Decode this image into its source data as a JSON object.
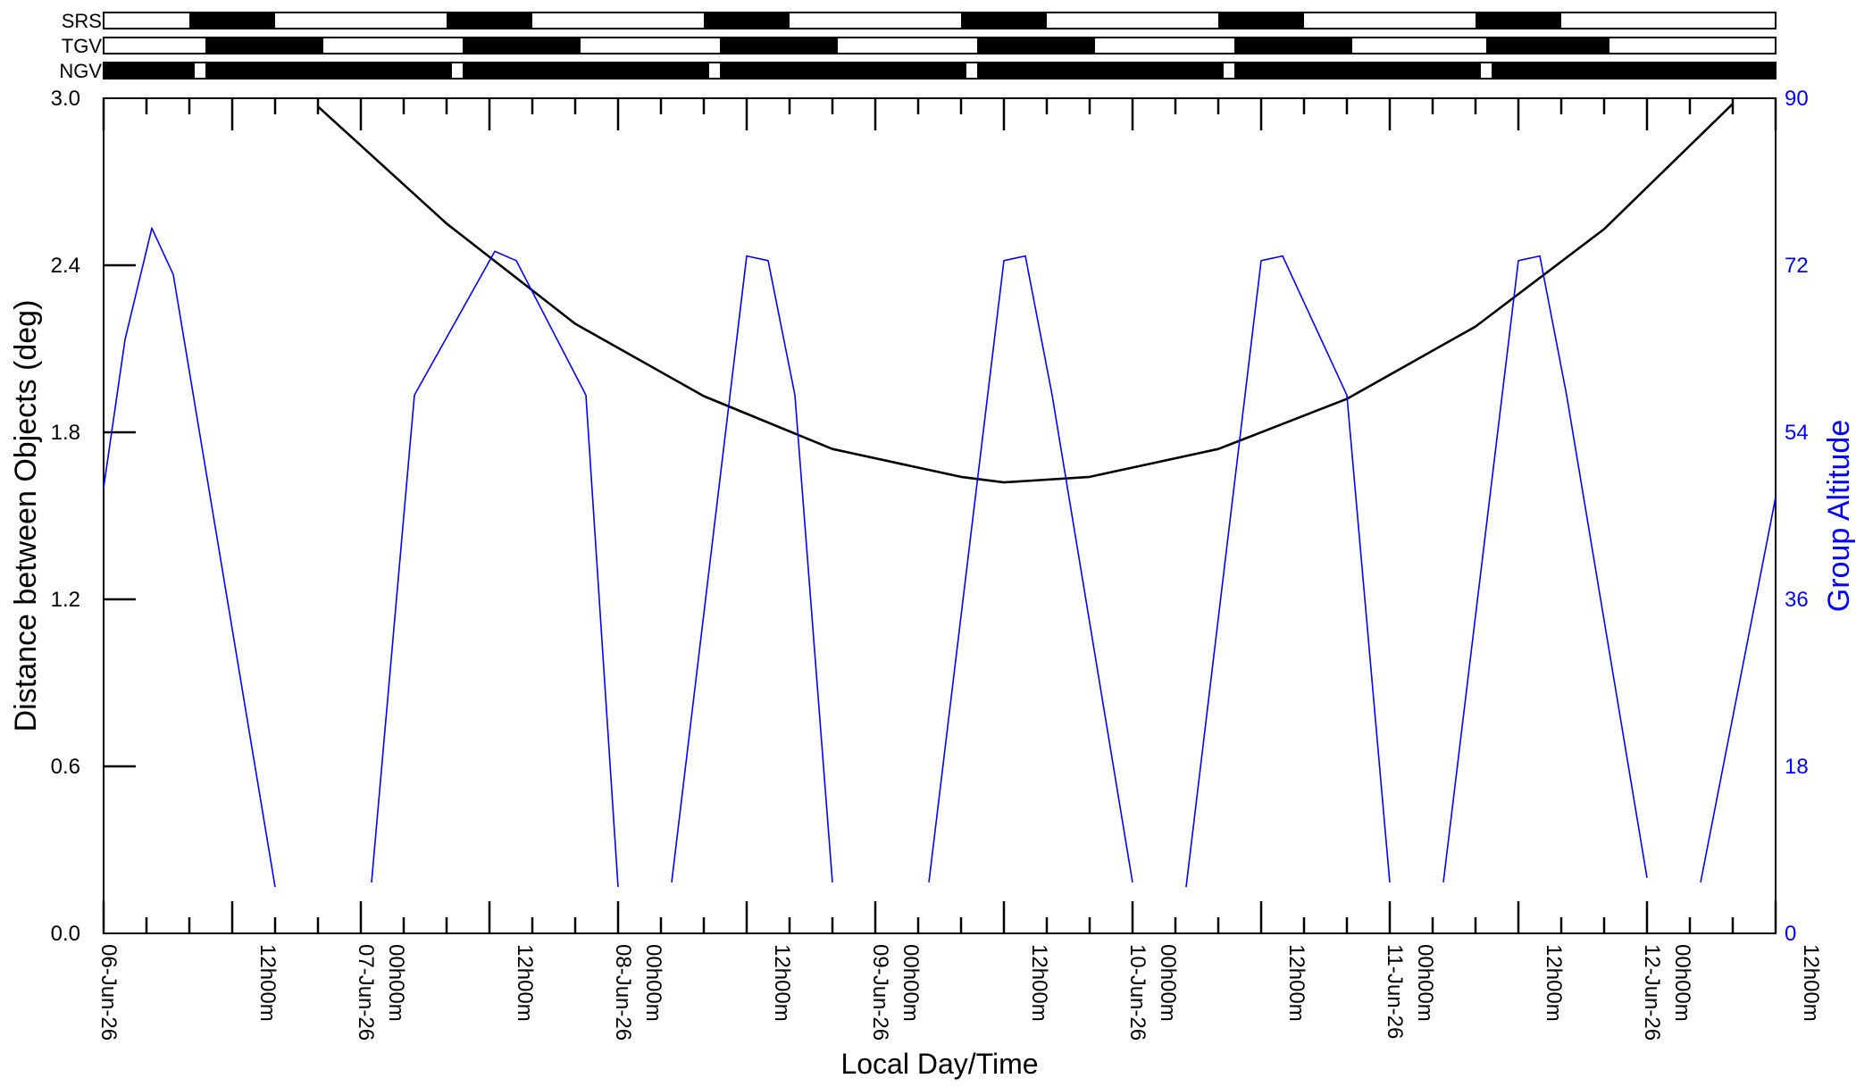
{
  "chart_data": {
    "type": "line",
    "xlabel": "Local Day/Time",
    "ylabel": "Distance between Objects (deg)",
    "y2label": "Group Altitude",
    "x_range": [
      "2026-06-06 00:00",
      "2026-06-12 12:00"
    ],
    "ylim": [
      0.0,
      3.0
    ],
    "y2lim": [
      0,
      90
    ],
    "yticks": [
      "0.0",
      "0.6",
      "1.2",
      "1.8",
      "2.4",
      "3.0"
    ],
    "y2ticks": [
      "0",
      "18",
      "36",
      "54",
      "72",
      "90"
    ],
    "xticks": [
      {
        "t": "2026-06-06 00:00",
        "label": "06-Jun-26",
        "kind": "date"
      },
      {
        "t": "2026-06-06 12:00",
        "label": "12h00m",
        "kind": "time"
      },
      {
        "t": "2026-06-07 00:00",
        "label": "07-Jun-26",
        "kind": "date"
      },
      {
        "t": "2026-06-07 00:00",
        "label": "00h00m",
        "kind": "time"
      },
      {
        "t": "2026-06-07 12:00",
        "label": "12h00m",
        "kind": "time"
      },
      {
        "t": "2026-06-08 00:00",
        "label": "08-Jun-26",
        "kind": "date"
      },
      {
        "t": "2026-06-08 00:00",
        "label": "00h00m",
        "kind": "time"
      },
      {
        "t": "2026-06-08 12:00",
        "label": "12h00m",
        "kind": "time"
      },
      {
        "t": "2026-06-09 00:00",
        "label": "09-Jun-26",
        "kind": "date"
      },
      {
        "t": "2026-06-09 00:00",
        "label": "00h00m",
        "kind": "time"
      },
      {
        "t": "2026-06-09 12:00",
        "label": "12h00m",
        "kind": "time"
      },
      {
        "t": "2026-06-10 00:00",
        "label": "10-Jun-26",
        "kind": "date"
      },
      {
        "t": "2026-06-10 00:00",
        "label": "00h00m",
        "kind": "time"
      },
      {
        "t": "2026-06-10 12:00",
        "label": "12h00m",
        "kind": "time"
      },
      {
        "t": "2026-06-11 00:00",
        "label": "11-Jun-26",
        "kind": "date"
      },
      {
        "t": "2026-06-11 00:00",
        "label": "00h00m",
        "kind": "time"
      },
      {
        "t": "2026-06-11 12:00",
        "label": "12h00m",
        "kind": "time"
      },
      {
        "t": "2026-06-12 00:00",
        "label": "12-Jun-26",
        "kind": "date"
      },
      {
        "t": "2026-06-12 00:00",
        "label": "00h00m",
        "kind": "time"
      },
      {
        "t": "2026-06-12 12:00",
        "label": "12h00m",
        "kind": "time"
      }
    ],
    "grid": false,
    "colors": {
      "distance": "#000000",
      "altitude": "#0000ff",
      "axis": "#000000",
      "right_axis": "#0000ff"
    },
    "series": [
      {
        "axis": "left",
        "color": "#000000",
        "points": [
          [
            "2026-06-06 20:00",
            2.97
          ],
          [
            "2026-06-07 08:00",
            2.55
          ],
          [
            "2026-06-07 20:00",
            2.19
          ],
          [
            "2026-06-08 08:00",
            1.93
          ],
          [
            "2026-06-08 20:00",
            1.74
          ],
          [
            "2026-06-09 08:00",
            1.64
          ],
          [
            "2026-06-09 12:00",
            1.62
          ],
          [
            "2026-06-09 20:00",
            1.64
          ],
          [
            "2026-06-10 08:00",
            1.74
          ],
          [
            "2026-06-10 20:00",
            1.92
          ],
          [
            "2026-06-11 08:00",
            2.18
          ],
          [
            "2026-06-11 20:00",
            2.53
          ],
          [
            "2026-06-12 08:00",
            2.98
          ]
        ]
      },
      {
        "axis": "right",
        "color": "#0000ff",
        "points": [
          [
            "2026-06-06 00:00",
            48.0
          ],
          [
            "2026-06-06 02:00",
            64.0
          ],
          [
            "2026-06-06 04:30",
            76.0
          ],
          [
            "2026-06-06 06:30",
            71.0
          ],
          [
            "2026-06-06 16:00",
            5.0
          ],
          null,
          [
            "2026-06-07 01:00",
            5.5
          ],
          [
            "2026-06-07 05:00",
            58.0
          ],
          [
            "2026-06-07 12:30",
            73.5
          ],
          [
            "2026-06-07 14:30",
            72.5
          ],
          [
            "2026-06-07 21:00",
            58.0
          ],
          [
            "2026-06-08 00:00",
            5.0
          ],
          null,
          [
            "2026-06-08 05:00",
            5.5
          ],
          [
            "2026-06-08 12:00",
            73.0
          ],
          [
            "2026-06-08 14:00",
            72.5
          ],
          [
            "2026-06-08 16:30",
            58.0
          ],
          [
            "2026-06-08 20:00",
            5.5
          ],
          null,
          [
            "2026-06-09 05:00",
            5.5
          ],
          [
            "2026-06-09 12:00",
            72.5
          ],
          [
            "2026-06-09 14:00",
            73.0
          ],
          [
            "2026-06-09 16:30",
            58.0
          ],
          [
            "2026-06-10 00:00",
            5.5
          ],
          null,
          [
            "2026-06-10 05:00",
            5.0
          ],
          [
            "2026-06-10 12:00",
            72.5
          ],
          [
            "2026-06-10 14:00",
            73.0
          ],
          [
            "2026-06-10 20:00",
            58.0
          ],
          [
            "2026-06-11 00:00",
            5.5
          ],
          null,
          [
            "2026-06-11 05:00",
            5.5
          ],
          [
            "2026-06-11 12:00",
            72.5
          ],
          [
            "2026-06-11 14:00",
            73.0
          ],
          [
            "2026-06-11 16:30",
            58.0
          ],
          [
            "2026-06-12 00:00",
            6.0
          ],
          null,
          [
            "2026-06-12 05:00",
            5.5
          ],
          [
            "2026-06-12 12:00",
            47.0
          ]
        ]
      }
    ],
    "bands": [
      {
        "label": "SRS",
        "segments": [
          [
            "2026-06-06 00:00",
            "2026-06-06 08:00",
            "white"
          ],
          [
            "2026-06-06 08:00",
            "2026-06-06 16:00",
            "black"
          ],
          [
            "2026-06-06 16:00",
            "2026-06-07 08:00",
            "white"
          ],
          [
            "2026-06-07 08:00",
            "2026-06-07 16:00",
            "black"
          ],
          [
            "2026-06-07 16:00",
            "2026-06-08 08:00",
            "white"
          ],
          [
            "2026-06-08 08:00",
            "2026-06-08 16:00",
            "black"
          ],
          [
            "2026-06-08 16:00",
            "2026-06-09 08:00",
            "white"
          ],
          [
            "2026-06-09 08:00",
            "2026-06-09 16:00",
            "black"
          ],
          [
            "2026-06-09 16:00",
            "2026-06-10 08:00",
            "white"
          ],
          [
            "2026-06-10 08:00",
            "2026-06-10 16:00",
            "black"
          ],
          [
            "2026-06-10 16:00",
            "2026-06-11 08:00",
            "white"
          ],
          [
            "2026-06-11 08:00",
            "2026-06-11 16:00",
            "black"
          ],
          [
            "2026-06-11 16:00",
            "2026-06-12 08:00",
            "white"
          ],
          [
            "2026-06-12 08:00",
            "2026-06-12 12:00",
            "white"
          ]
        ]
      },
      {
        "label": "TGV",
        "segments": [
          [
            "2026-06-06 00:00",
            "2026-06-06 09:30",
            "white"
          ],
          [
            "2026-06-06 09:30",
            "2026-06-06 20:30",
            "black"
          ],
          [
            "2026-06-06 20:30",
            "2026-06-07 09:30",
            "white"
          ],
          [
            "2026-06-07 09:30",
            "2026-06-07 20:30",
            "black"
          ],
          [
            "2026-06-07 20:30",
            "2026-06-08 09:30",
            "white"
          ],
          [
            "2026-06-08 09:30",
            "2026-06-08 20:30",
            "black"
          ],
          [
            "2026-06-08 20:30",
            "2026-06-09 09:30",
            "white"
          ],
          [
            "2026-06-09 09:30",
            "2026-06-09 20:30",
            "black"
          ],
          [
            "2026-06-09 20:30",
            "2026-06-10 09:30",
            "white"
          ],
          [
            "2026-06-10 09:30",
            "2026-06-10 20:30",
            "black"
          ],
          [
            "2026-06-10 20:30",
            "2026-06-11 09:00",
            "white"
          ],
          [
            "2026-06-11 09:00",
            "2026-06-11 20:30",
            "black"
          ],
          [
            "2026-06-11 20:30",
            "2026-06-12 12:00",
            "white"
          ]
        ]
      },
      {
        "label": "NGV",
        "segments": [
          [
            "2026-06-06 00:00",
            "2026-06-06 08:30",
            "black"
          ],
          [
            "2026-06-06 08:30",
            "2026-06-06 09:30",
            "white"
          ],
          [
            "2026-06-06 09:30",
            "2026-06-07 08:30",
            "black"
          ],
          [
            "2026-06-07 08:30",
            "2026-06-07 09:30",
            "white"
          ],
          [
            "2026-06-07 09:30",
            "2026-06-08 08:30",
            "black"
          ],
          [
            "2026-06-08 08:30",
            "2026-06-08 09:30",
            "white"
          ],
          [
            "2026-06-08 09:30",
            "2026-06-09 08:30",
            "black"
          ],
          [
            "2026-06-09 08:30",
            "2026-06-09 09:30",
            "white"
          ],
          [
            "2026-06-09 09:30",
            "2026-06-10 08:30",
            "black"
          ],
          [
            "2026-06-10 08:30",
            "2026-06-10 09:30",
            "white"
          ],
          [
            "2026-06-10 09:30",
            "2026-06-11 08:30",
            "black"
          ],
          [
            "2026-06-11 08:30",
            "2026-06-11 09:30",
            "white"
          ],
          [
            "2026-06-11 09:30",
            "2026-06-12 12:00",
            "black"
          ]
        ]
      }
    ]
  }
}
